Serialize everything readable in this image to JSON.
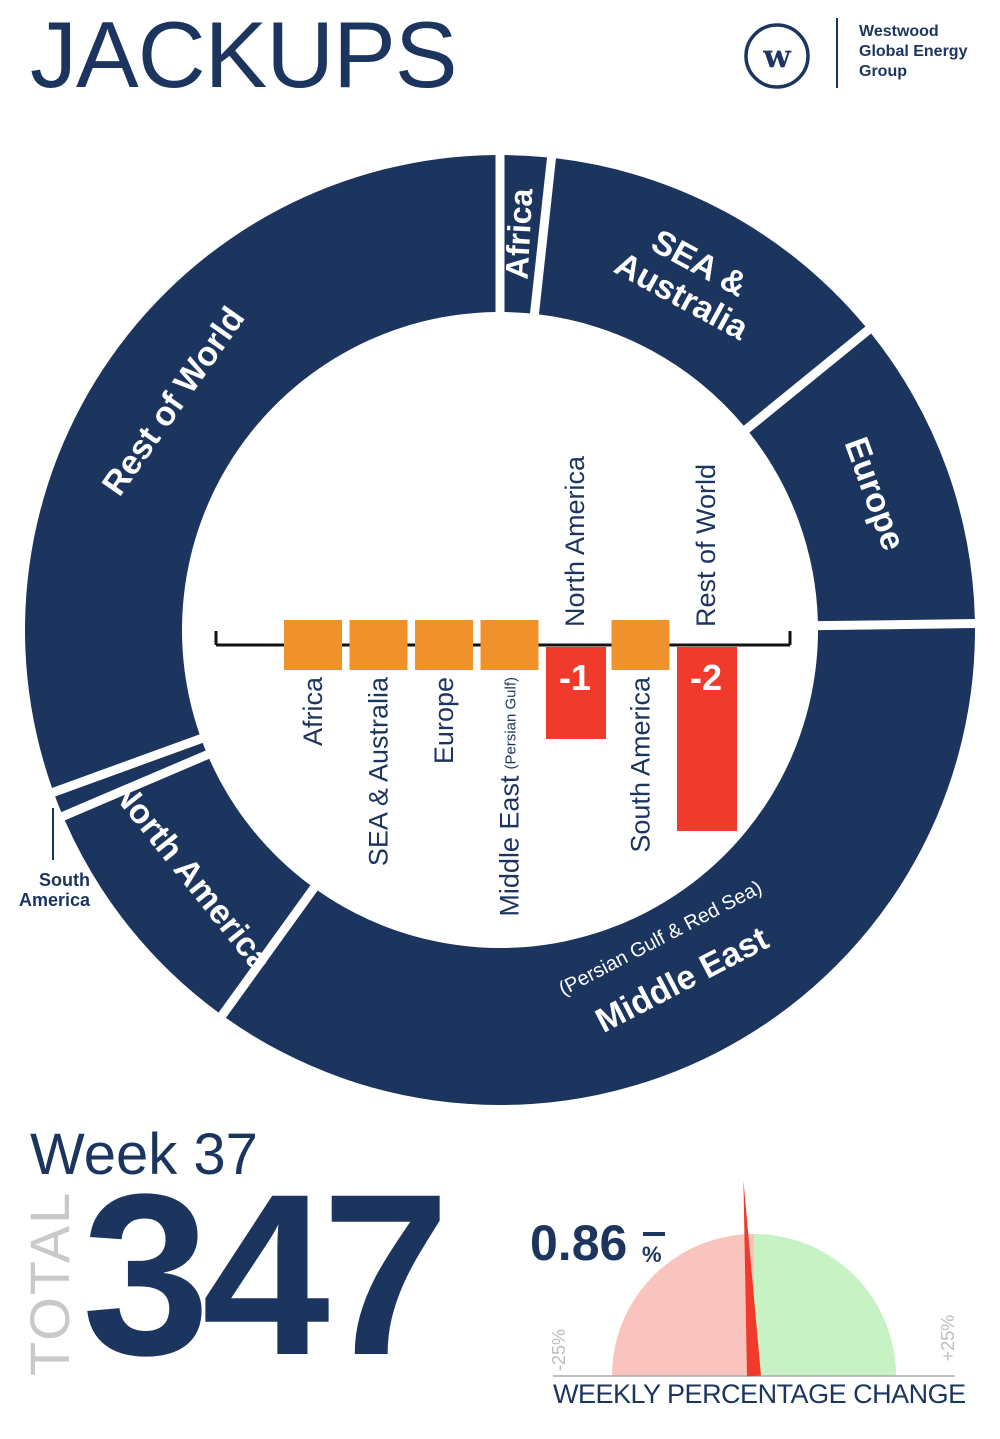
{
  "header": {
    "title": "JACKUPS",
    "logo_lines": [
      "Westwood",
      "Global Energy",
      "Group"
    ],
    "logo_mark_letter": "w"
  },
  "colors": {
    "navy": "#1c355e",
    "orange": "#f0922b",
    "red": "#f03a2b",
    "gauge_negative": "#f9c4bd",
    "gauge_positive": "#c6f2c4"
  },
  "chart_data": [
    {
      "type": "pie",
      "subtype": "donut",
      "slices": [
        {
          "label": "Africa",
          "sub": "",
          "value": 6
        },
        {
          "label": "SEA & Australia",
          "sub": "",
          "value": 43
        },
        {
          "label": "Europe",
          "sub": "",
          "value": 37
        },
        {
          "label": "Middle East",
          "sub": "(Persian Gulf & Red Sea)",
          "value": 122
        },
        {
          "label": "North America",
          "sub": "",
          "value": 30
        },
        {
          "label": "South America",
          "sub": "",
          "value": 3
        },
        {
          "label": "Rest of World",
          "sub": "",
          "value": 106
        }
      ]
    },
    {
      "type": "bar",
      "categories": [
        {
          "label": "Africa",
          "sub": ""
        },
        {
          "label": "SEA & Australia",
          "sub": ""
        },
        {
          "label": "Europe",
          "sub": ""
        },
        {
          "label": "Middle East",
          "sub": "(Persian Gulf)"
        },
        {
          "label": "North America",
          "sub": ""
        },
        {
          "label": "South America",
          "sub": ""
        },
        {
          "label": "Rest of World",
          "sub": ""
        }
      ],
      "values": [
        0,
        0,
        0,
        0,
        -1,
        0,
        -2
      ],
      "value_labels": [
        "",
        "",
        "",
        "",
        "-1",
        "",
        "-2"
      ]
    }
  ],
  "south_america_callout": [
    "South",
    "America"
  ],
  "summary": {
    "week_label": "Week 37",
    "total_label": "TOTAL",
    "total_value": "347",
    "pct_change": "0.86",
    "pct_sign": "%",
    "pct_direction": "negative",
    "pct_value": -0.86,
    "gauge_min_label": "-25%",
    "gauge_max_label": "+25%",
    "gauge_range": [
      -25,
      25
    ],
    "gauge_title": "WEEKLY PERCENTAGE CHANGE"
  }
}
